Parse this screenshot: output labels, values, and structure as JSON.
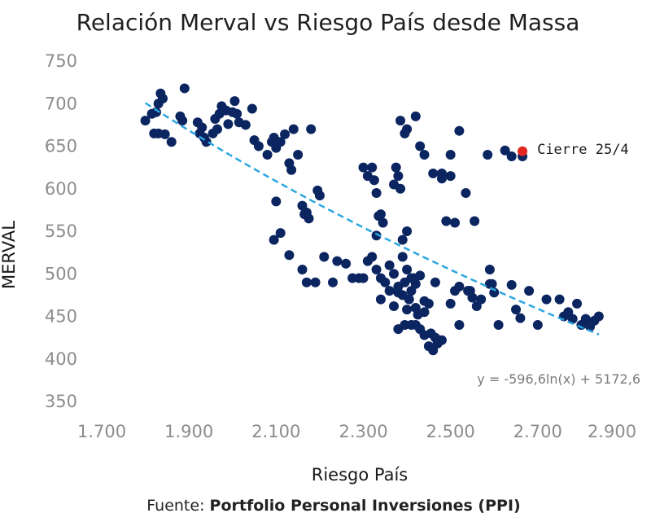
{
  "chart_data": {
    "type": "scatter",
    "title": "Relación Merval vs Riesgo País desde Massa",
    "xlabel": "Riesgo País",
    "ylabel": "MERVAL",
    "xlim": [
      1700,
      2900
    ],
    "ylim": [
      350,
      750
    ],
    "x_ticks": [
      "1.700",
      "1.900",
      "2.100",
      "2.300",
      "2.500",
      "2.700",
      "2.900"
    ],
    "y_ticks": [
      "350",
      "400",
      "450",
      "500",
      "550",
      "600",
      "650",
      "700",
      "750"
    ],
    "grid": false,
    "point_color": "#0b2560",
    "points": [
      [
        1800,
        680
      ],
      [
        1815,
        688
      ],
      [
        1820,
        665
      ],
      [
        1825,
        690
      ],
      [
        1830,
        700
      ],
      [
        1835,
        712
      ],
      [
        1840,
        706
      ],
      [
        1845,
        664
      ],
      [
        1830,
        665
      ],
      [
        1860,
        655
      ],
      [
        1880,
        685
      ],
      [
        1885,
        680
      ],
      [
        1890,
        718
      ],
      [
        1920,
        678
      ],
      [
        1925,
        665
      ],
      [
        1930,
        672
      ],
      [
        1935,
        660
      ],
      [
        1940,
        655
      ],
      [
        1955,
        665
      ],
      [
        1960,
        682
      ],
      [
        1965,
        670
      ],
      [
        1970,
        688
      ],
      [
        1975,
        697
      ],
      [
        1985,
        692
      ],
      [
        1990,
        676
      ],
      [
        2000,
        690
      ],
      [
        2005,
        703
      ],
      [
        2010,
        688
      ],
      [
        2015,
        678
      ],
      [
        2030,
        675
      ],
      [
        2045,
        694
      ],
      [
        2050,
        657
      ],
      [
        2060,
        650
      ],
      [
        2080,
        640
      ],
      [
        2090,
        655
      ],
      [
        2095,
        660
      ],
      [
        2100,
        648
      ],
      [
        2110,
        655
      ],
      [
        2120,
        664
      ],
      [
        2130,
        630
      ],
      [
        2135,
        622
      ],
      [
        2140,
        670
      ],
      [
        2150,
        640
      ],
      [
        2100,
        585
      ],
      [
        2095,
        540
      ],
      [
        2110,
        548
      ],
      [
        2130,
        522
      ],
      [
        2160,
        580
      ],
      [
        2165,
        570
      ],
      [
        2170,
        572
      ],
      [
        2175,
        565
      ],
      [
        2180,
        670
      ],
      [
        2195,
        598
      ],
      [
        2200,
        592
      ],
      [
        2160,
        505
      ],
      [
        2170,
        490
      ],
      [
        2190,
        490
      ],
      [
        2210,
        520
      ],
      [
        2230,
        490
      ],
      [
        2240,
        515
      ],
      [
        2260,
        512
      ],
      [
        2275,
        495
      ],
      [
        2290,
        495
      ],
      [
        2300,
        625
      ],
      [
        2310,
        615
      ],
      [
        2320,
        625
      ],
      [
        2325,
        610
      ],
      [
        2330,
        595
      ],
      [
        2300,
        495
      ],
      [
        2310,
        515
      ],
      [
        2320,
        520
      ],
      [
        2330,
        505
      ],
      [
        2340,
        495
      ],
      [
        2350,
        490
      ],
      [
        2360,
        510
      ],
      [
        2370,
        500
      ],
      [
        2380,
        485
      ],
      [
        2390,
        520
      ],
      [
        2400,
        505
      ],
      [
        2410,
        495
      ],
      [
        2420,
        488
      ],
      [
        2330,
        545
      ],
      [
        2335,
        568
      ],
      [
        2340,
        570
      ],
      [
        2345,
        560
      ],
      [
        2370,
        605
      ],
      [
        2375,
        625
      ],
      [
        2380,
        615
      ],
      [
        2385,
        600
      ],
      [
        2390,
        540
      ],
      [
        2400,
        550
      ],
      [
        2385,
        680
      ],
      [
        2395,
        665
      ],
      [
        2400,
        670
      ],
      [
        2420,
        685
      ],
      [
        2430,
        650
      ],
      [
        2440,
        640
      ],
      [
        2460,
        618
      ],
      [
        2480,
        618
      ],
      [
        2490,
        562
      ],
      [
        2500,
        615
      ],
      [
        2510,
        560
      ],
      [
        2520,
        668
      ],
      [
        2535,
        595
      ],
      [
        2555,
        562
      ],
      [
        2340,
        470
      ],
      [
        2360,
        480
      ],
      [
        2370,
        462
      ],
      [
        2380,
        478
      ],
      [
        2390,
        475
      ],
      [
        2395,
        490
      ],
      [
        2400,
        458
      ],
      [
        2405,
        470
      ],
      [
        2410,
        480
      ],
      [
        2415,
        495
      ],
      [
        2420,
        460
      ],
      [
        2425,
        452
      ],
      [
        2430,
        498
      ],
      [
        2440,
        468
      ],
      [
        2450,
        465
      ],
      [
        2380,
        435
      ],
      [
        2395,
        440
      ],
      [
        2410,
        440
      ],
      [
        2420,
        440
      ],
      [
        2430,
        435
      ],
      [
        2440,
        428
      ],
      [
        2450,
        415
      ],
      [
        2455,
        430
      ],
      [
        2460,
        410
      ],
      [
        2465,
        425
      ],
      [
        2470,
        418
      ],
      [
        2480,
        422
      ],
      [
        2440,
        455
      ],
      [
        2500,
        465
      ],
      [
        2510,
        480
      ],
      [
        2520,
        485
      ],
      [
        2540,
        480
      ],
      [
        2550,
        472
      ],
      [
        2560,
        462
      ],
      [
        2570,
        470
      ],
      [
        2590,
        505
      ],
      [
        2595,
        488
      ],
      [
        2600,
        478
      ],
      [
        2610,
        440
      ],
      [
        2640,
        487
      ],
      [
        2650,
        458
      ],
      [
        2660,
        448
      ],
      [
        2680,
        480
      ],
      [
        2700,
        440
      ],
      [
        2720,
        470
      ],
      [
        2750,
        470
      ],
      [
        2760,
        450
      ],
      [
        2770,
        455
      ],
      [
        2780,
        447
      ],
      [
        2790,
        465
      ],
      [
        2800,
        440
      ],
      [
        2810,
        447
      ],
      [
        2820,
        438
      ],
      [
        2830,
        445
      ],
      [
        2840,
        450
      ],
      [
        2590,
        488
      ],
      [
        2625,
        645
      ],
      [
        2640,
        638
      ],
      [
        2665,
        638
      ],
      [
        2585,
        640
      ],
      [
        2500,
        640
      ],
      [
        2480,
        612
      ],
      [
        2465,
        490
      ],
      [
        2520,
        440
      ],
      [
        2545,
        480
      ]
    ],
    "trendline": {
      "type": "logarithmic",
      "equation": "y = -596,6ln(x) + 5172,6",
      "color": "#2aa6e0",
      "x_range": [
        1800,
        2840
      ]
    },
    "annotation": {
      "label": "Cierre 25/4",
      "x": 2665,
      "y": 644,
      "color": "#e0261e"
    }
  },
  "source": {
    "prefix": "Fuente: ",
    "name": "Portfolio Personal Inversiones (PPI)"
  }
}
